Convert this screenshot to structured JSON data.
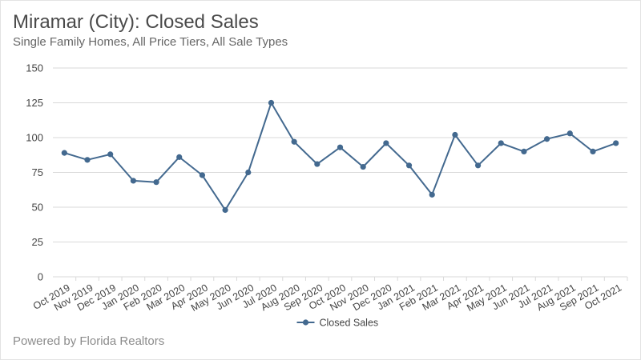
{
  "header": {
    "title": "Miramar (City): Closed Sales",
    "subtitle": "Single Family Homes, All Price Tiers, All Sale Types"
  },
  "footer": {
    "text": "Powered by Florida Realtors"
  },
  "colors": {
    "series": "#43698f",
    "grid": "#d9d9d9",
    "axis_text": "#444444"
  },
  "chart_data": {
    "type": "line",
    "title": "Miramar (City): Closed Sales",
    "subtitle": "Single Family Homes, All Price Tiers, All Sale Types",
    "xlabel": "",
    "ylabel": "",
    "ylim": [
      0,
      150
    ],
    "yticks": [
      0,
      25,
      50,
      75,
      100,
      125,
      150
    ],
    "grid": true,
    "legend": "bottom-center",
    "categories": [
      "Oct 2019",
      "Nov 2019",
      "Dec 2019",
      "Jan 2020",
      "Feb 2020",
      "Mar 2020",
      "Apr 2020",
      "May 2020",
      "Jun 2020",
      "Jul 2020",
      "Aug 2020",
      "Sep 2020",
      "Oct 2020",
      "Nov 2020",
      "Dec 2020",
      "Jan 2021",
      "Feb 2021",
      "Mar 2021",
      "Apr 2021",
      "May 2021",
      "Jun 2021",
      "Jul 2021",
      "Aug 2021",
      "Sep 2021",
      "Oct 2021"
    ],
    "series": [
      {
        "name": "Closed Sales",
        "values": [
          89,
          84,
          88,
          69,
          68,
          86,
          73,
          48,
          75,
          125,
          97,
          81,
          93,
          79,
          96,
          80,
          59,
          102,
          80,
          96,
          90,
          99,
          103,
          90,
          96
        ]
      }
    ]
  }
}
